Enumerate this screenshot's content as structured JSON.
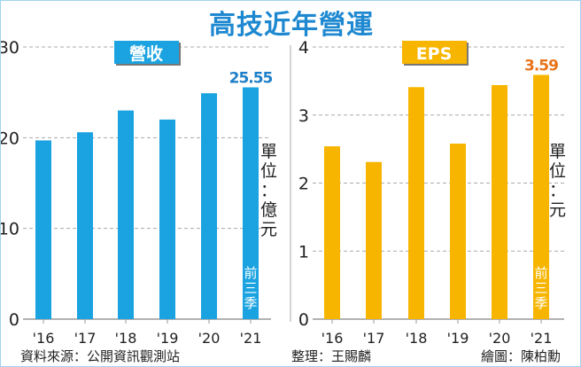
{
  "title": "高技近年營運",
  "colors": {
    "revenue": "#1aa3e0",
    "eps": "#f7b500",
    "title": "#1e88d0",
    "eps_label": "#e8731a",
    "revenue_label": "#1e7fc8"
  },
  "chart_data": [
    {
      "type": "bar",
      "title": "營收",
      "categories": [
        "'16",
        "'17",
        "'18",
        "'19",
        "'20",
        "'21"
      ],
      "values": [
        19.7,
        20.6,
        23.0,
        22.0,
        24.9,
        25.55
      ],
      "ylim": [
        0,
        30
      ],
      "yticks": [
        "0",
        "10",
        "20",
        "30"
      ],
      "grid": true,
      "unit": "單位：億元",
      "data_labels": {
        "5": "25.55"
      },
      "bar_note": "前三季"
    },
    {
      "type": "bar",
      "title": "EPS",
      "categories": [
        "'16",
        "'17",
        "'18",
        "'19",
        "'20",
        "'21"
      ],
      "values": [
        2.54,
        2.31,
        3.41,
        2.58,
        3.44,
        3.59
      ],
      "ylim": [
        0,
        4
      ],
      "yticks": [
        "0",
        "1",
        "2",
        "3",
        "4"
      ],
      "grid": true,
      "unit": "單位：元",
      "data_labels": {
        "5": "3.59"
      },
      "bar_note": "前三季"
    }
  ],
  "footer": {
    "source": "資料來源：公開資訊觀測站",
    "editor": "整理：王賜麟",
    "artist": "繪圖：陳柏勳"
  }
}
